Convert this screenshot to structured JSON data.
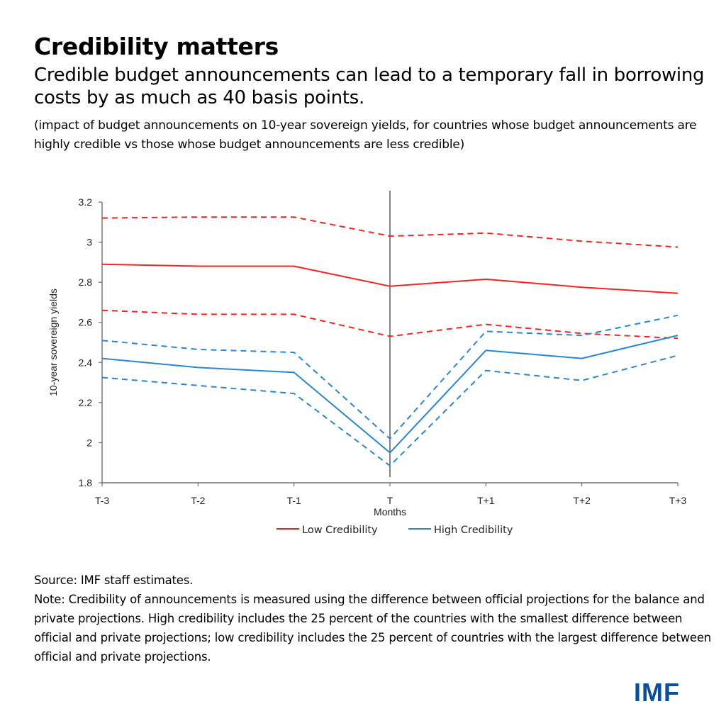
{
  "header": {
    "title": "Credibility matters",
    "subtitle": "Credible budget announcements can lead to a temporary fall in borrowing costs by as much as 40 basis points.",
    "description": "(impact of budget announcements on 10-year sovereign yields, for countries whose budget announcements are highly credible vs those whose budget announcements are less credible)"
  },
  "chart_data": {
    "type": "line",
    "title": "",
    "xlabel": "Months",
    "ylabel": "10-year sovereign yields",
    "categories": [
      "T-3",
      "T-2",
      "T-1",
      "T",
      "T+1",
      "T+2",
      "T+3"
    ],
    "ylim": [
      1.8,
      3.2
    ],
    "yticks": [
      "1.8",
      "2",
      "2.2",
      "2.4",
      "2.6",
      "2.8",
      "3",
      "3.2"
    ],
    "ytick_values": [
      1.8,
      2.0,
      2.2,
      2.4,
      2.6,
      2.8,
      3.0,
      3.2
    ],
    "grid": false,
    "event_line_at": "T",
    "legend_position": "bottom",
    "colors": {
      "low": "#ff2020",
      "high": "#2a86d0",
      "axis": "#555555"
    },
    "series": [
      {
        "name": "Low Credibility",
        "key": "low",
        "style": "solid",
        "in_legend": true,
        "values": [
          2.89,
          2.88,
          2.88,
          2.78,
          2.815,
          2.775,
          2.745
        ]
      },
      {
        "name": "Low Credibility upper band",
        "key": "low",
        "style": "dashed",
        "in_legend": false,
        "values": [
          3.12,
          3.125,
          3.125,
          3.03,
          3.045,
          3.005,
          2.975
        ]
      },
      {
        "name": "Low Credibility lower band",
        "key": "low",
        "style": "dashed",
        "in_legend": false,
        "values": [
          2.66,
          2.64,
          2.64,
          2.53,
          2.59,
          2.545,
          2.52
        ]
      },
      {
        "name": "High Credibility",
        "key": "high",
        "style": "solid",
        "in_legend": true,
        "values": [
          2.42,
          2.375,
          2.35,
          1.95,
          2.46,
          2.42,
          2.535
        ]
      },
      {
        "name": "High Credibility upper band",
        "key": "high",
        "style": "dashed",
        "in_legend": false,
        "values": [
          2.51,
          2.465,
          2.45,
          2.02,
          2.555,
          2.535,
          2.635
        ]
      },
      {
        "name": "High Credibility lower band",
        "key": "high",
        "style": "dashed",
        "in_legend": false,
        "values": [
          2.325,
          2.285,
          2.245,
          1.885,
          2.36,
          2.31,
          2.435
        ]
      }
    ],
    "legend": [
      "Low Credibility",
      "High Credibility"
    ]
  },
  "footer": {
    "source": "Source: IMF staff estimates.",
    "note": "Note: Credibility of announcements is measured using the difference between official projections for the balance and private projections. High credibility includes the 25 percent of the countries with the smallest difference between official and private projections; low credibility includes the 25 percent of countries with the largest difference between official and private projections.",
    "logo": "IMF"
  }
}
